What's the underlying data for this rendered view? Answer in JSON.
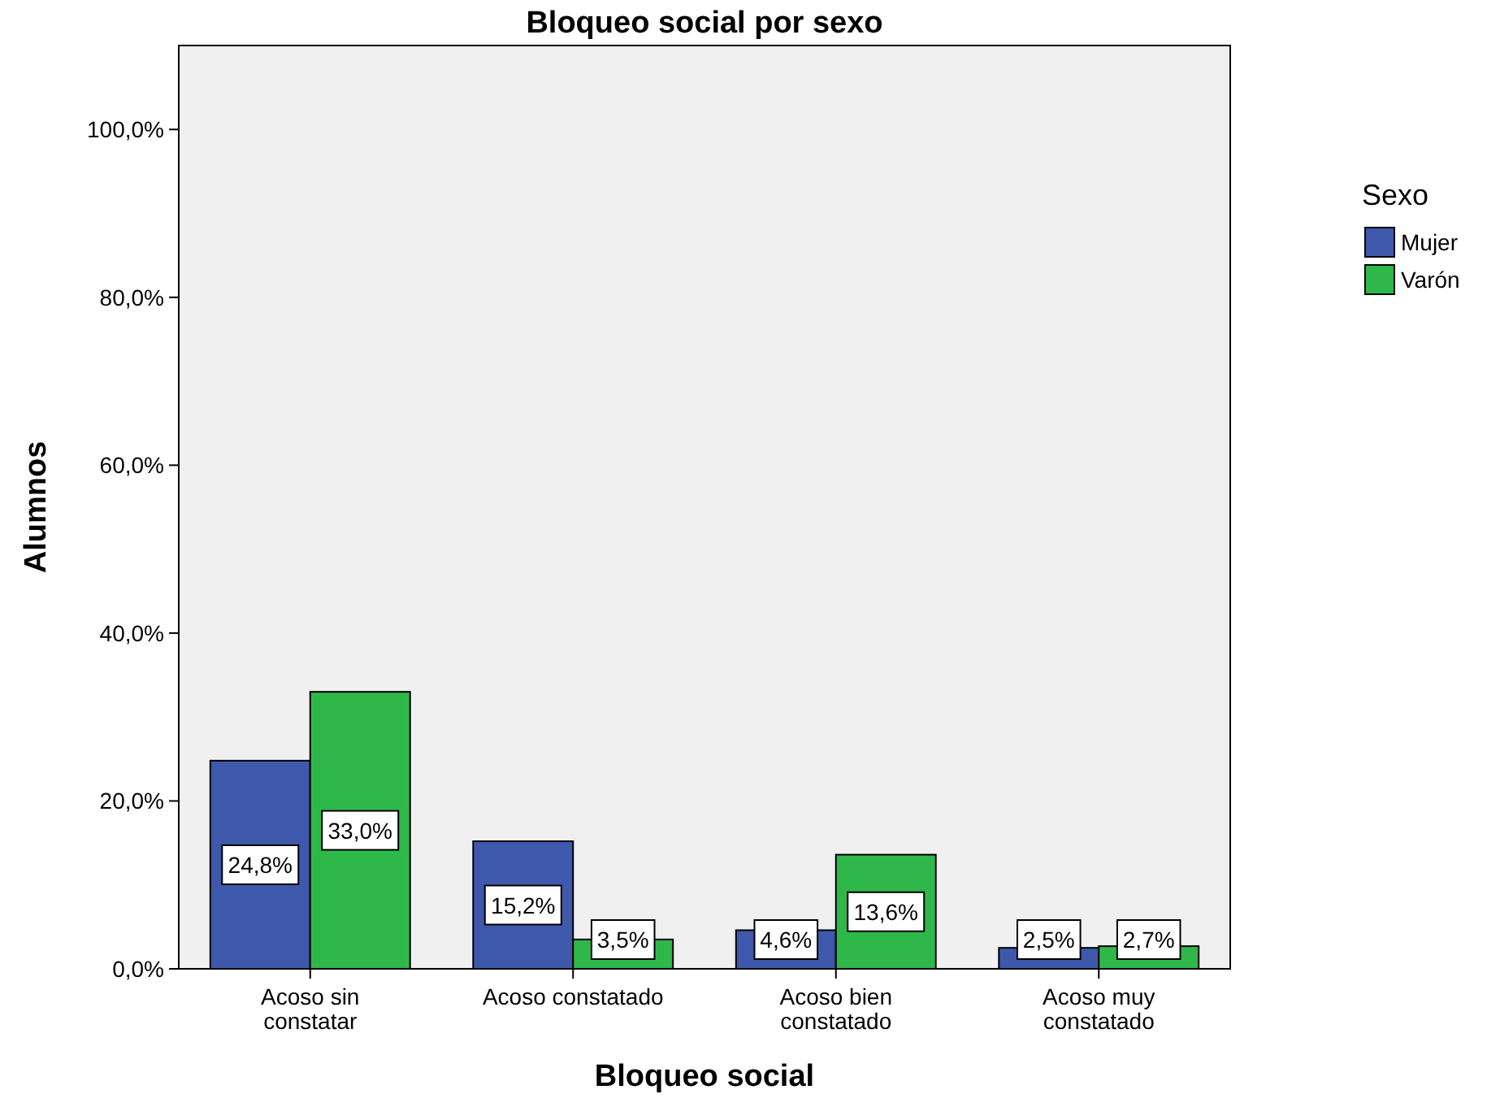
{
  "chart_data": {
    "type": "bar",
    "title": "Bloqueo social por sexo",
    "xlabel": "Bloqueo social",
    "ylabel": "Alumnos",
    "legend_title": "Sexo",
    "legend": "right",
    "categories": [
      "Acoso sin constatar",
      "Acoso constatado",
      "Acoso bien constatado",
      "Acoso muy constatado"
    ],
    "series": [
      {
        "name": "Mujer",
        "color": "#3e58ac",
        "values": [
          24.8,
          15.2,
          4.6,
          2.5
        ],
        "value_labels": [
          "24,8%",
          "15,2%",
          "4,6%",
          "2,5%"
        ]
      },
      {
        "name": "Varón",
        "color": "#2eb84a",
        "values": [
          33.0,
          3.5,
          13.6,
          2.7
        ],
        "value_labels": [
          "33,0%",
          "3,5%",
          "13,6%",
          "2,7%"
        ]
      }
    ],
    "ylim": [
      0,
      110
    ],
    "yticks": [
      {
        "value": 0,
        "label": "0,0%"
      },
      {
        "value": 20,
        "label": "20,0%"
      },
      {
        "value": 40,
        "label": "40,0%"
      },
      {
        "value": 60,
        "label": "60,0%"
      },
      {
        "value": 80,
        "label": "80,0%"
      },
      {
        "value": 100,
        "label": "100,0%"
      }
    ],
    "grid": false
  }
}
